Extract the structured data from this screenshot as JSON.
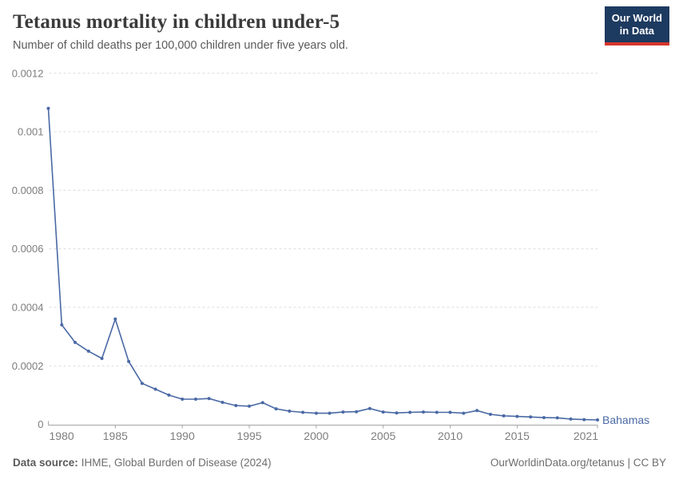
{
  "chart_data": {
    "type": "line",
    "title": "Tetanus mortality in children under-5",
    "subtitle": "Number of child deaths per 100,000 children under five years old.",
    "x": [
      1980,
      1981,
      1982,
      1983,
      1984,
      1985,
      1986,
      1987,
      1988,
      1989,
      1990,
      1991,
      1992,
      1993,
      1994,
      1995,
      1996,
      1997,
      1998,
      1999,
      2000,
      2001,
      2002,
      2003,
      2004,
      2005,
      2006,
      2007,
      2008,
      2009,
      2010,
      2011,
      2012,
      2013,
      2014,
      2015,
      2016,
      2017,
      2018,
      2019,
      2020,
      2021
    ],
    "series": [
      {
        "name": "Bahamas",
        "values": [
          0.00108,
          0.00034,
          0.00028,
          0.00025,
          0.000225,
          0.00036,
          0.000215,
          0.00014,
          0.00012,
          0.0001,
          8.6e-05,
          8.6e-05,
          8.8e-05,
          7.5e-05,
          6.4e-05,
          6.2e-05,
          7.4e-05,
          5.3e-05,
          4.5e-05,
          4.1e-05,
          3.8e-05,
          3.8e-05,
          4.2e-05,
          4.3e-05,
          5.4e-05,
          4.2e-05,
          3.9e-05,
          4.1e-05,
          4.2e-05,
          4.1e-05,
          4.1e-05,
          3.8e-05,
          4.7e-05,
          3.4e-05,
          2.9e-05,
          2.7e-05,
          2.5e-05,
          2.3e-05,
          2.2e-05,
          1.8e-05,
          1.6e-05,
          1.5e-05
        ]
      }
    ],
    "xlim": [
      1980,
      2021
    ],
    "ylim": [
      0,
      0.0012
    ],
    "xticks": [
      1980,
      1985,
      1990,
      1995,
      2000,
      2005,
      2010,
      2015,
      2021
    ],
    "yticks": [
      0,
      0.0002,
      0.0004,
      0.0006,
      0.0008,
      0.001,
      0.0012
    ],
    "grid": "dashed-horizontal",
    "legend_position": "right-of-line-end-label",
    "colors": {
      "line": "#4a69a5",
      "grid": "#dcdcdc",
      "axis": "#a3a3a3",
      "tick_label": "#7d7d7d"
    }
  },
  "logo": {
    "line1": "Our World",
    "line2": "in Data",
    "background": "#1d3a60",
    "accent": "#d5362c"
  },
  "footer": {
    "source_label": "Data source:",
    "source_value": "IHME, Global Burden of Disease (2024)",
    "credit": "OurWorldinData.org/tetanus | CC BY"
  }
}
